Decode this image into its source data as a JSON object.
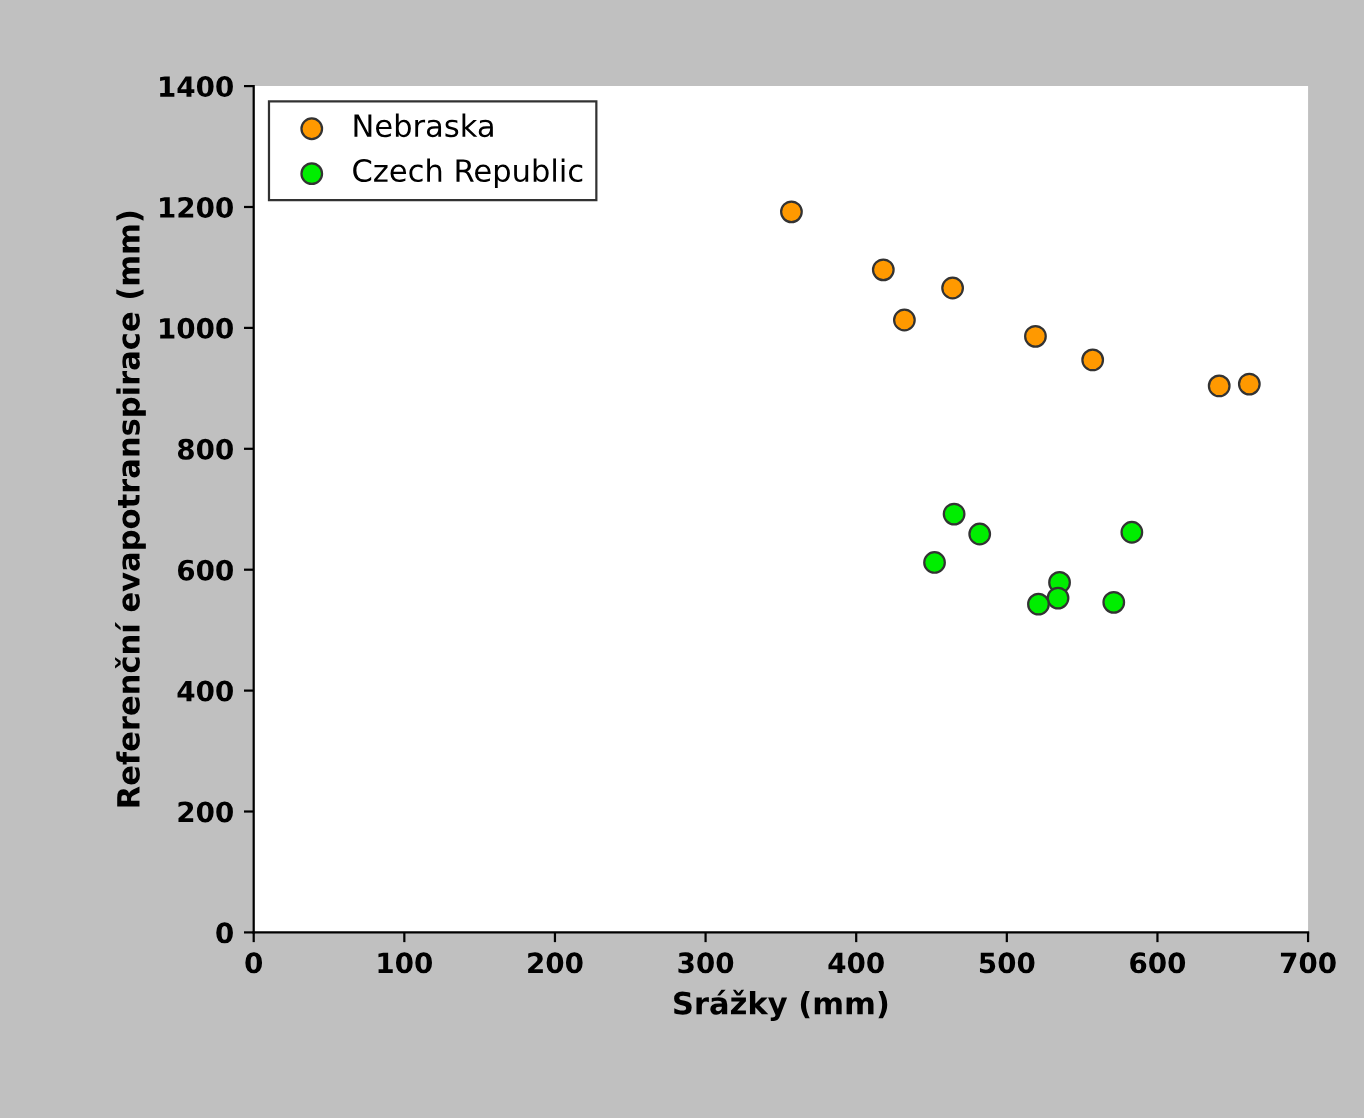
{
  "chart_data": {
    "type": "scatter",
    "xlabel": "Srážky (mm)",
    "ylabel": "Referenční evapotranspirace (mm)",
    "xlim": [
      0,
      700
    ],
    "xticks": [
      0,
      100,
      200,
      300,
      400,
      500,
      600,
      700
    ],
    "ylim": [
      0,
      1400
    ],
    "yticks": [
      0,
      200,
      400,
      600,
      800,
      1000,
      1200,
      1400
    ],
    "grid": false,
    "legend": "top left",
    "marker": "circle",
    "series": [
      {
        "name": "Nebraska",
        "color": "#ff9900",
        "x": [
          357,
          418,
          432,
          464,
          519,
          557,
          641,
          661
        ],
        "values": [
          1192,
          1096,
          1013,
          1066,
          986,
          947,
          904,
          907
        ]
      },
      {
        "name": "Czech Republic",
        "color": "#00ee00",
        "x": [
          465,
          482,
          452,
          583,
          535,
          534,
          521,
          571
        ],
        "values": [
          692,
          659,
          612,
          662,
          579,
          553,
          543,
          546
        ]
      }
    ]
  }
}
